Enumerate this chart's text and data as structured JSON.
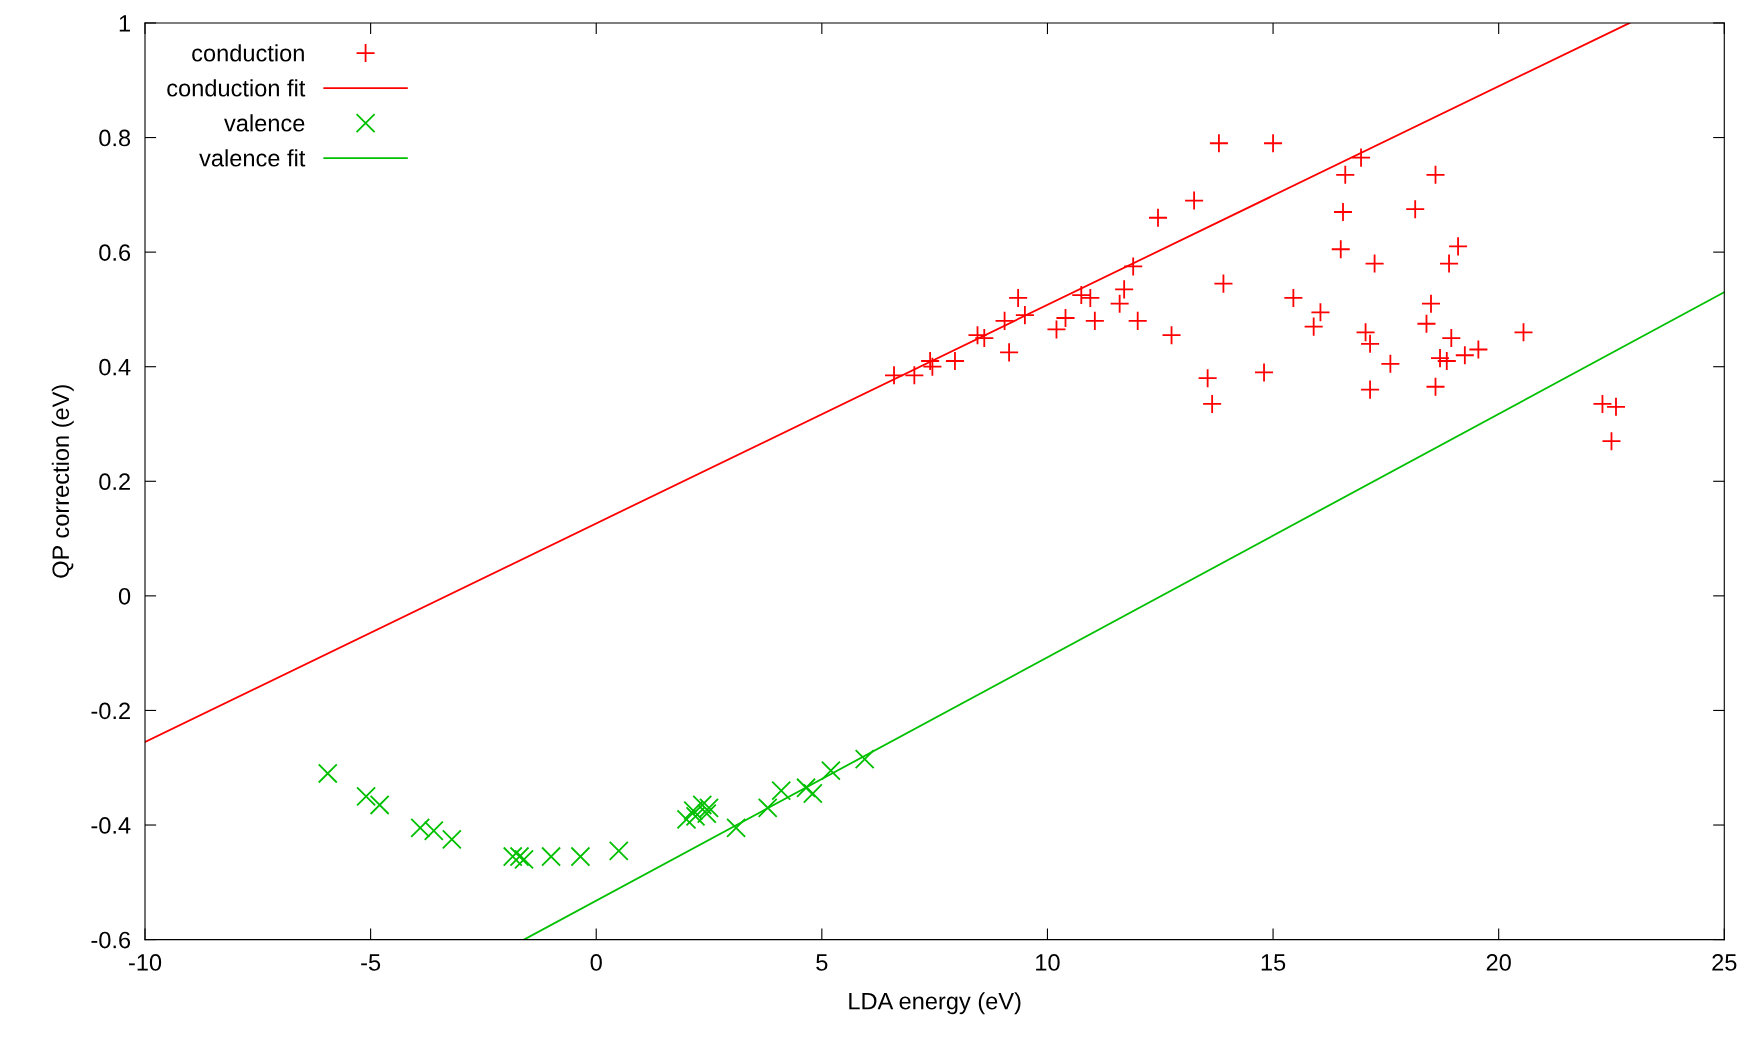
{
  "chart_data": {
    "type": "scatter",
    "xlabel": "LDA energy (eV)",
    "ylabel": "QP correction (eV)",
    "xlim": [
      -10,
      25
    ],
    "xticks": [
      -10,
      -5,
      0,
      5,
      10,
      15,
      20,
      25
    ],
    "ylim": [
      -0.6,
      1
    ],
    "yticks": [
      -0.6,
      -0.4,
      -0.2,
      0,
      0.2,
      0.4,
      0.6,
      0.8,
      1
    ],
    "grid": false,
    "legend": "top left",
    "series": [
      {
        "name": "conduction",
        "marker": "plus",
        "color": "#ff0000",
        "x": [
          6.6,
          7.05,
          7.4,
          7.45,
          7.95,
          8.45,
          8.6,
          9.05,
          9.15,
          9.35,
          9.5,
          10.2,
          10.4,
          10.75,
          10.95,
          11.05,
          11.6,
          11.7,
          11.9,
          12.0,
          12.45,
          12.75,
          13.25,
          13.55,
          13.65,
          13.8,
          13.9,
          14.8,
          15.0,
          15.45,
          15.9,
          16.05,
          16.5,
          16.55,
          16.6,
          16.95,
          17.05,
          17.15,
          17.15,
          17.25,
          17.6,
          18.15,
          18.4,
          18.5,
          18.6,
          18.6,
          18.7,
          18.85,
          18.9,
          18.95,
          19.1,
          19.25,
          19.55,
          20.55,
          22.3,
          22.5,
          22.6
        ],
        "values": [
          0.385,
          0.385,
          0.41,
          0.4,
          0.41,
          0.455,
          0.45,
          0.48,
          0.425,
          0.52,
          0.49,
          0.465,
          0.485,
          0.525,
          0.52,
          0.48,
          0.51,
          0.535,
          0.575,
          0.48,
          0.66,
          0.455,
          0.69,
          0.38,
          0.335,
          0.79,
          0.545,
          0.39,
          0.79,
          0.52,
          0.47,
          0.495,
          0.605,
          0.67,
          0.735,
          0.765,
          0.46,
          0.44,
          0.36,
          0.58,
          0.405,
          0.675,
          0.475,
          0.51,
          0.735,
          0.365,
          0.415,
          0.41,
          0.58,
          0.45,
          0.61,
          0.42,
          0.43,
          0.46,
          0.335,
          0.27,
          0.33
        ]
      },
      {
        "name": "conduction fit",
        "type": "line",
        "line_style": "solid",
        "color": "#ff0000",
        "x": [
          -10,
          22.9
        ],
        "values": [
          -0.255,
          1.0
        ]
      },
      {
        "name": "valence",
        "marker": "cross",
        "color": "#00c000",
        "x": [
          -5.95,
          -5.1,
          -4.8,
          -3.9,
          -3.6,
          -3.2,
          -1.85,
          -1.7,
          -1.6,
          -1.0,
          -0.35,
          0.5,
          2.0,
          2.15,
          2.2,
          2.35,
          2.45,
          2.5,
          3.1,
          3.8,
          4.1,
          4.65,
          4.8,
          5.2,
          5.95
        ],
        "values": [
          -0.31,
          -0.35,
          -0.365,
          -0.405,
          -0.41,
          -0.425,
          -0.455,
          -0.455,
          -0.46,
          -0.455,
          -0.455,
          -0.445,
          -0.39,
          -0.375,
          -0.385,
          -0.365,
          -0.38,
          -0.37,
          -0.405,
          -0.37,
          -0.34,
          -0.335,
          -0.345,
          -0.305,
          -0.285
        ]
      },
      {
        "name": "valence fit",
        "type": "line",
        "line_style": "solid",
        "color": "#00c000",
        "x": [
          -1.6,
          25
        ],
        "values": [
          -0.6,
          0.53
        ]
      }
    ]
  }
}
